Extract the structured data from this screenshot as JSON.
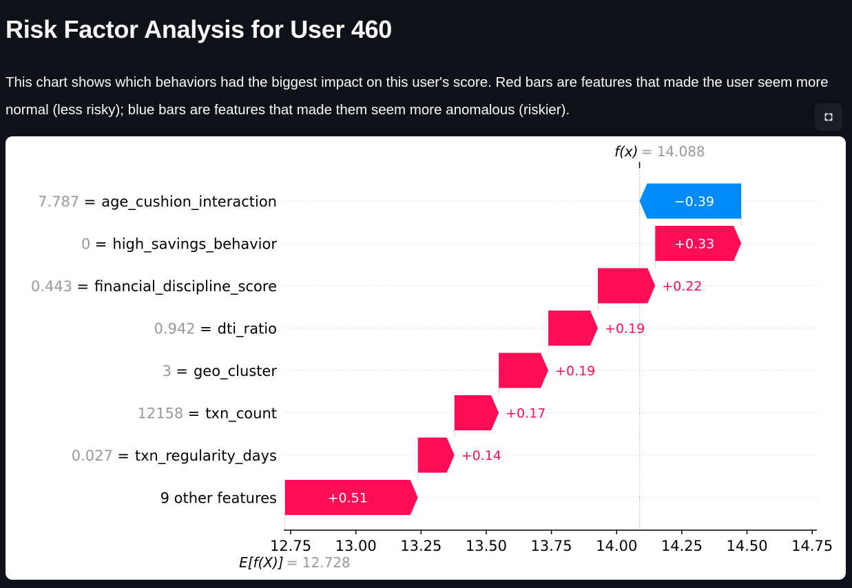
{
  "page": {
    "title": "Risk Factor Analysis for User 460",
    "description": "This chart shows which behaviors had the biggest impact on this user's score. Red bars are features that made the user seem more normal (less risky); blue bars are features that made them seem more anomalous (riskier).",
    "fullscreen_icon": "fullscreen-icon"
  },
  "chart_data": {
    "type": "waterfall",
    "base_value": 12.728,
    "base_value_label": "E[f(X)]",
    "base_value_text": "= 12.728",
    "output_value": 14.088,
    "output_value_label": "f(x)",
    "output_value_text": "= 14.088",
    "xlim": [
      12.7,
      14.8
    ],
    "xticks": [
      12.75,
      13.0,
      13.25,
      13.5,
      13.75,
      14.0,
      14.25,
      14.5,
      14.75
    ],
    "xtick_labels": [
      "12.75",
      "13.00",
      "13.25",
      "13.50",
      "13.75",
      "14.00",
      "14.25",
      "14.50",
      "14.75"
    ],
    "colors": {
      "positive": "#ff0d57",
      "negative": "#008bfb",
      "value_text": "#999999"
    },
    "features": [
      {
        "value": "7.787",
        "name": "age_cushion_interaction",
        "contribution": -0.39,
        "label": "−0.39"
      },
      {
        "value": "0",
        "name": "high_savings_behavior",
        "contribution": 0.33,
        "label": "+0.33"
      },
      {
        "value": "0.443",
        "name": "financial_discipline_score",
        "contribution": 0.22,
        "label": "+0.22"
      },
      {
        "value": "0.942",
        "name": "dti_ratio",
        "contribution": 0.19,
        "label": "+0.19"
      },
      {
        "value": "3",
        "name": "geo_cluster",
        "contribution": 0.19,
        "label": "+0.19"
      },
      {
        "value": "12158",
        "name": "txn_count",
        "contribution": 0.17,
        "label": "+0.17"
      },
      {
        "value": "0.027",
        "name": "txn_regularity_days",
        "contribution": 0.14,
        "label": "+0.14"
      },
      {
        "value": "",
        "name": "9 other features",
        "contribution": 0.51,
        "label": "+0.51"
      }
    ]
  }
}
